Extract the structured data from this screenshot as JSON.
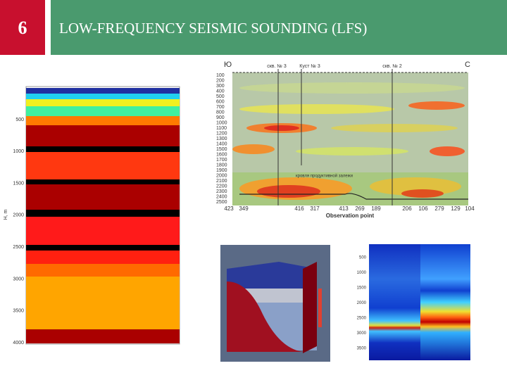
{
  "header": {
    "number": "6",
    "title": "LOW-FREQUENCY SEISMIC SOUNDING (LFS)"
  },
  "left_image": {
    "axis_label": "H, m",
    "ticks": [
      "500",
      "1000",
      "1500",
      "2000",
      "2500",
      "3000",
      "3500",
      "4000"
    ]
  },
  "section_image": {
    "left_label": "Ю",
    "right_label": "С",
    "wells": [
      "скв. № 3",
      "Куст № 3",
      "скв. № 2"
    ],
    "depths": [
      "100",
      "200",
      "300",
      "400",
      "500",
      "600",
      "700",
      "800",
      "900",
      "1000",
      "1100",
      "1200",
      "1300",
      "1400",
      "1500",
      "1600",
      "1700",
      "1800",
      "1900",
      "2000",
      "2100",
      "2200",
      "2300",
      "2400",
      "2500"
    ],
    "points": [
      "423",
      "349",
      "416",
      "317",
      "413",
      "269",
      "189",
      "206",
      "106",
      "279",
      "129",
      "104"
    ],
    "x_label": "Observation point",
    "annotation": "кровля продуктивной залежи"
  },
  "profile_image": {
    "ticks": [
      "500",
      "1000",
      "1500",
      "2000",
      "2500",
      "3000",
      "3500"
    ]
  }
}
